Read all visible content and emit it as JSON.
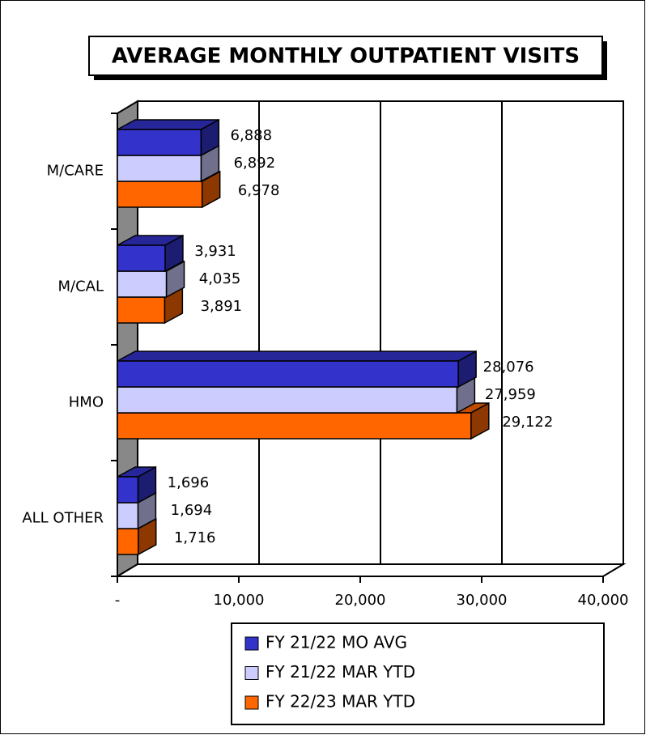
{
  "chart_data": {
    "type": "bar3d_horizontal",
    "title": "AVERAGE MONTHLY OUTPATIENT VISITS",
    "categories": [
      "M/CARE",
      "M/CAL",
      "HMO",
      "ALL OTHER"
    ],
    "series": [
      {
        "name": "FY 21/22 MO AVG",
        "color": "#3333cc",
        "values": [
          6888,
          3931,
          28076,
          1696
        ],
        "value_labels": [
          "6,888",
          "3,931",
          "28,076",
          "1,696"
        ]
      },
      {
        "name": "FY 21/22 MAR YTD",
        "color": "#ccccff",
        "values": [
          6892,
          4035,
          27959,
          1694
        ],
        "value_labels": [
          "6,892",
          "4,035",
          "27,959",
          "1,694"
        ]
      },
      {
        "name": "FY 22/23 MAR YTD",
        "color": "#ff6600",
        "values": [
          6978,
          3891,
          29122,
          1716
        ],
        "value_labels": [
          "6,978",
          "3,891",
          "29,122",
          "1,716"
        ]
      }
    ],
    "xlim": [
      0,
      40000
    ],
    "xticks": [
      {
        "value": 0,
        "label": "-"
      },
      {
        "value": 10000,
        "label": "10,000"
      },
      {
        "value": 20000,
        "label": "20,000"
      },
      {
        "value": 30000,
        "label": "30,000"
      },
      {
        "value": 40000,
        "label": "40,000"
      }
    ],
    "grid": true
  }
}
